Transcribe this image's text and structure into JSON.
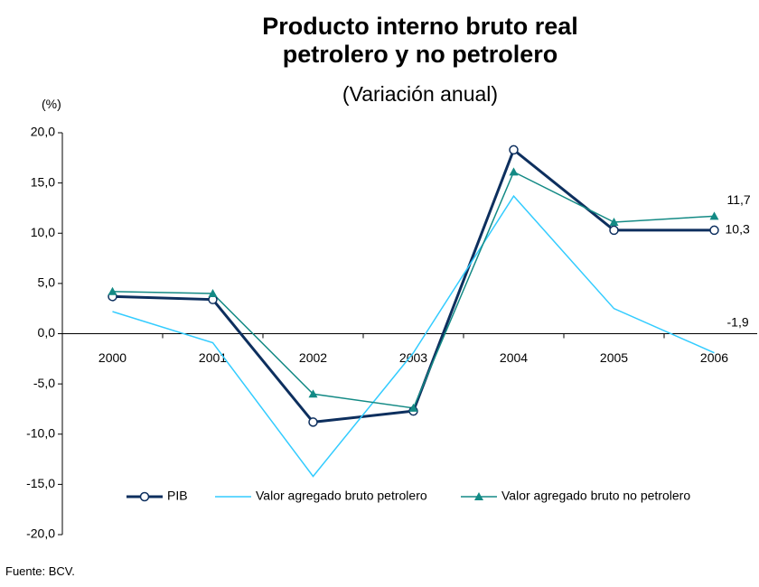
{
  "chart_data": {
    "type": "line",
    "title": "Producto interno bruto real petrolero y no petrolero",
    "subtitle": "(Variación anual)",
    "y_label": "(%)",
    "source": "Fuente: BCV.",
    "categories": [
      "2000",
      "2001",
      "2002",
      "2003",
      "2004",
      "2005",
      "2006"
    ],
    "series": [
      {
        "name": "PIB",
        "color": "#0d2f5e",
        "marker": "circle",
        "values": [
          3.7,
          3.4,
          -8.8,
          -7.7,
          18.3,
          10.3,
          10.3
        ],
        "value_labels": [
          null,
          null,
          null,
          null,
          null,
          null,
          "10,3"
        ]
      },
      {
        "name": "Valor agregado bruto petrolero",
        "color": "#33ccff",
        "marker": "none",
        "values": [
          2.2,
          -0.9,
          -14.2,
          -1.9,
          13.7,
          2.5,
          -1.9
        ],
        "value_labels": [
          null,
          null,
          null,
          null,
          null,
          null,
          "-1,9"
        ]
      },
      {
        "name": "Valor agregado bruto no petrolero",
        "color": "#138a85",
        "marker": "triangle",
        "values": [
          4.2,
          4.0,
          -6.0,
          -7.4,
          16.1,
          11.1,
          11.7
        ],
        "value_labels": [
          null,
          null,
          null,
          null,
          null,
          null,
          "11,7"
        ]
      }
    ],
    "ylim": [
      -20,
      20
    ],
    "yticks": [
      {
        "value": -20,
        "label": "-20,0"
      },
      {
        "value": -15,
        "label": "-15,0"
      },
      {
        "value": -10,
        "label": "-10,0"
      },
      {
        "value": -5,
        "label": "-5,0"
      },
      {
        "value": 0,
        "label": "0,0"
      },
      {
        "value": 5,
        "label": "5,0"
      },
      {
        "value": 10,
        "label": "10,0"
      },
      {
        "value": 15,
        "label": "15,0"
      },
      {
        "value": 20,
        "label": "20,0"
      }
    ],
    "grid": false,
    "legend": "bottom"
  }
}
